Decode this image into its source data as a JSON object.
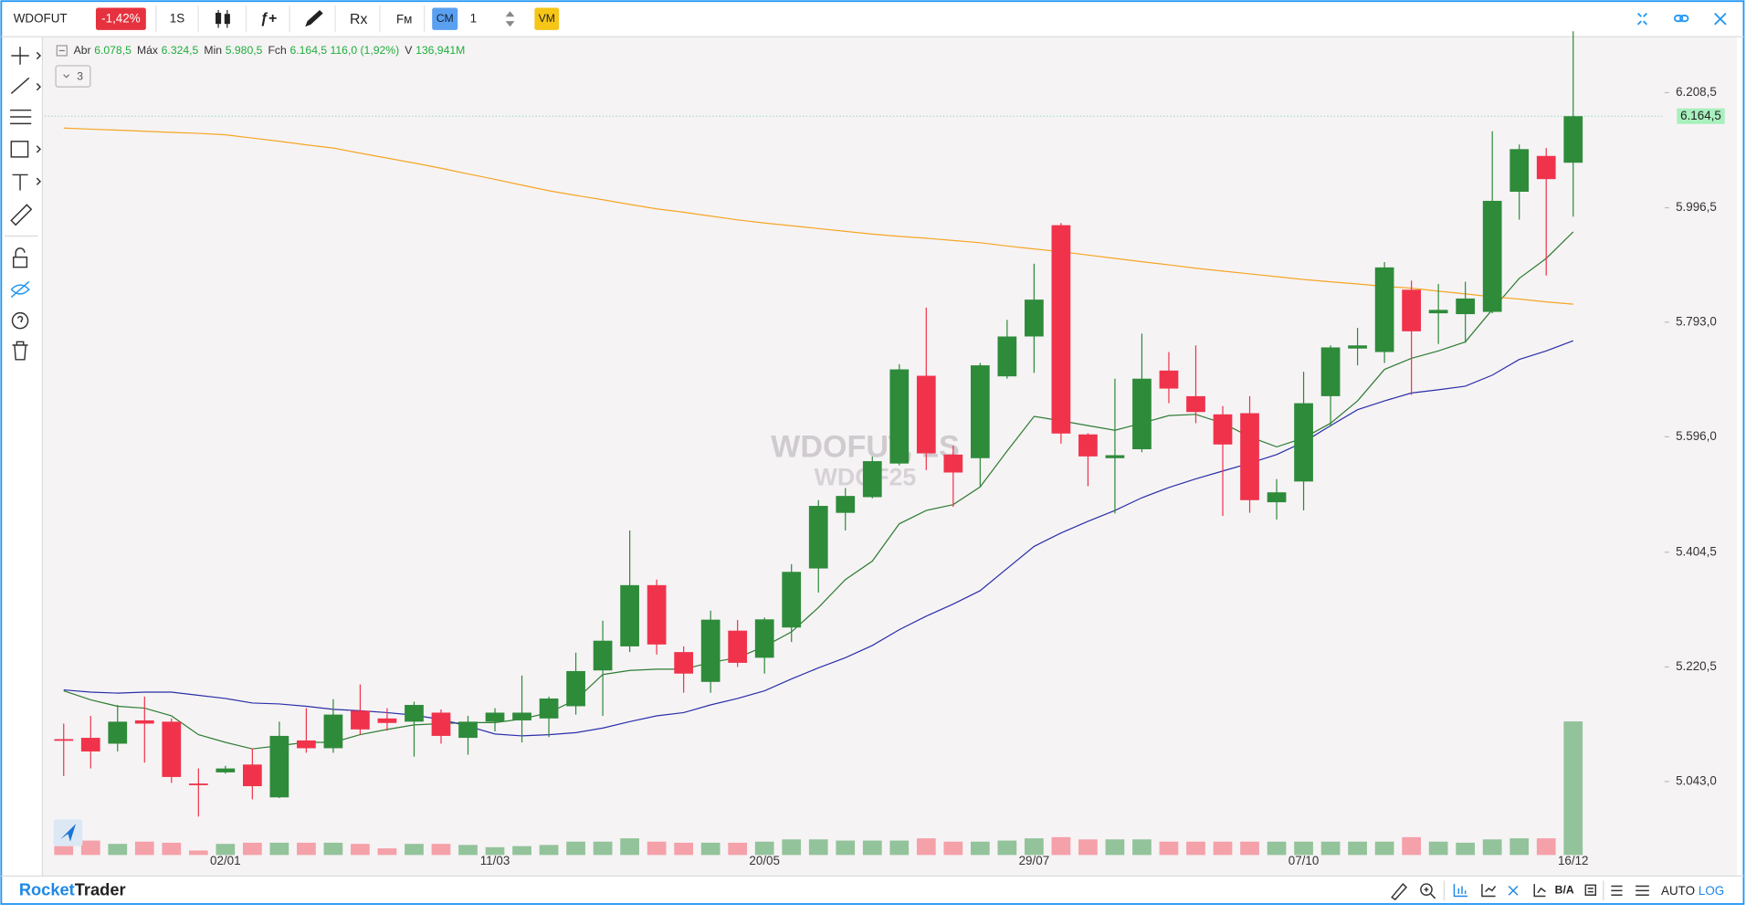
{
  "app": {
    "symbol": "WDOFUT",
    "change": "-1,42%",
    "period": "1S",
    "indicator": "ƒ+",
    "rx": "Rx",
    "fm": "Fм",
    "cm": "CM",
    "qty": "1",
    "vm": "VM",
    "collapse": "3",
    "brand_1": "Rocket",
    "brand_2": "Trader",
    "ba": "B/A",
    "auto": "AUTO",
    "log": "LOG",
    "watermark_1": "WDOFUT, 1S",
    "watermark_2": "WDOF25"
  },
  "chart_data": {
    "type": "candlestick",
    "log": true,
    "legend": [
      {
        "label": "Abr",
        "value": "6.078,5"
      },
      {
        "label": "Máx",
        "value": "6.324,5"
      },
      {
        "label": "Min",
        "value": "5.980,5"
      },
      {
        "label": "Fch",
        "value": "6.164,5 116,0 (1,92%)"
      },
      {
        "label": "V",
        "value": "136,941M"
      }
    ],
    "last_price_label": "6.164,5",
    "categories": [
      null,
      null,
      null,
      null,
      null,
      null,
      "02/01",
      null,
      null,
      null,
      null,
      null,
      null,
      null,
      null,
      null,
      "11/03",
      null,
      null,
      null,
      null,
      null,
      null,
      null,
      null,
      null,
      "20/05",
      null,
      null,
      null,
      null,
      null,
      null,
      null,
      null,
      null,
      "29/07",
      null,
      null,
      null,
      null,
      null,
      null,
      null,
      null,
      null,
      "07/10",
      null,
      null,
      null,
      null,
      null,
      null,
      null,
      null,
      null,
      "16/12"
    ],
    "open": [
      5108,
      5110,
      5101,
      5137,
      5135,
      5040,
      5057,
      5069,
      5019,
      5106,
      5094,
      5152,
      5140,
      5135,
      5149,
      5110,
      5135,
      5137,
      5140,
      5159,
      5215,
      5253,
      5351,
      5244,
      5197,
      5278,
      5235,
      5283,
      5378,
      5469,
      5495,
      5551,
      5700,
      5566,
      5560,
      5699,
      5768,
      5965,
      5600,
      5560,
      5575,
      5709,
      5665,
      5634,
      5636,
      5486.5,
      5521,
      5665,
      5747,
      5741,
      5850,
      5808.5,
      5807,
      5811,
      6025.5,
      6091,
      6078.5
    ],
    "high": [
      5132,
      5144,
      5161,
      5174,
      5140,
      5063,
      5067,
      5094,
      5135,
      5156,
      5170,
      5193,
      5156,
      5166,
      5154,
      5144,
      5156,
      5207,
      5174,
      5243,
      5294,
      5440,
      5360,
      5253,
      5310,
      5295,
      5299,
      5385,
      5490,
      5510,
      5563,
      5720,
      5818.5,
      5581,
      5722,
      5797,
      5896,
      5969,
      5602,
      5695,
      5773,
      5741,
      5752.5,
      5648,
      5665,
      5525,
      5707,
      5752.5,
      5783,
      5899,
      5866,
      5860,
      5864,
      6136.5,
      6112,
      6105.5,
      6324.5
    ],
    "low": [
      5051.5,
      5063,
      5089,
      5072,
      5041,
      4990,
      5055,
      5016,
      5018,
      5087,
      5087,
      5115,
      5121,
      5081,
      5101,
      5084,
      5120,
      5103,
      5111,
      5146,
      5144,
      5244,
      5240,
      5180,
      5180,
      5220.5,
      5210,
      5260,
      5339,
      5440,
      5493,
      5548,
      5540,
      5479,
      5512,
      5695,
      5705,
      5584.5,
      5513,
      5468,
      5570,
      5653,
      5619,
      5464,
      5469,
      5458,
      5473,
      5613,
      5718,
      5722,
      5667,
      5755,
      5757,
      5808.5,
      5975,
      5875,
      5980.5
    ],
    "close": [
      5107.5,
      5089,
      5135,
      5132,
      5050,
      5038,
      5063,
      5036,
      5113,
      5094,
      5146,
      5123,
      5133,
      5161,
      5113,
      5135,
      5149,
      5149,
      5171,
      5214,
      5262,
      5351,
      5256,
      5210,
      5295.5,
      5227,
      5296,
      5372.5,
      5480.5,
      5497,
      5555,
      5711,
      5568,
      5536,
      5718,
      5768,
      5832.5,
      5601.5,
      5563,
      5565,
      5695,
      5678,
      5638,
      5583,
      5490,
      5503,
      5653,
      5749,
      5752.5,
      5889.5,
      5777,
      5814.5,
      5834.5,
      6009,
      6103.5,
      6048.5,
      6164.5
    ],
    "volume": [
      9.1,
      14.8,
      11.4,
      13.7,
      12.6,
      4.6,
      11.4,
      12.6,
      12.6,
      12.6,
      12.6,
      11.4,
      6.8,
      11.4,
      11.4,
      10.3,
      8.0,
      9.1,
      10.3,
      13.7,
      13.7,
      17.1,
      13.7,
      12.6,
      12.6,
      12.6,
      13.7,
      16.0,
      16.0,
      14.8,
      14.8,
      14.8,
      17.1,
      13.7,
      13.7,
      14.8,
      17.1,
      18.3,
      16.0,
      16.0,
      16.0,
      13.7,
      13.7,
      13.7,
      13.7,
      13.7,
      13.7,
      13.7,
      13.7,
      13.7,
      18.3,
      13.7,
      12.6,
      16.0,
      17.1,
      17.1,
      136.941
    ],
    "up_color": "#2e8b3a",
    "down_color": "#f0334b",
    "up_volume_color": "#93c39a",
    "down_volume_color": "#f4a1aa",
    "series": [
      {
        "color": "#2e7d32",
        "values": [
          5183,
          5169,
          5159,
          5156,
          5144,
          5115,
          5103,
          5093,
          5098,
          5103,
          5103,
          5115,
          5123,
          5130,
          5132,
          5133.5,
          5133.5,
          5139,
          5149,
          5169,
          5208.5,
          5215,
          5217,
          5217,
          5227.5,
          5235,
          5253,
          5276,
          5315,
          5360,
          5390,
          5451,
          5473,
          5482.5,
          5512,
          5572,
          5630.5,
          5623,
          5615,
          5607,
          5619,
          5632,
          5634,
          5619,
          5596,
          5579,
          5594,
          5619,
          5657,
          5711,
          5730,
          5743,
          5758.5,
          5815,
          5870,
          5905.5,
          5953
        ]
      },
      {
        "color": "#2a2fa8",
        "values": [
          5184.5,
          5181,
          5179.5,
          5181,
          5181,
          5176,
          5171,
          5164,
          5162.5,
          5159,
          5154,
          5152,
          5149,
          5145,
          5138.5,
          5128,
          5116,
          5113,
          5115,
          5118,
          5125,
          5135,
          5144,
          5149,
          5161,
          5171,
          5183,
          5201.5,
          5219,
          5235,
          5254.5,
          5279.5,
          5301,
          5320.5,
          5342,
          5378,
          5414,
          5436,
          5455,
          5473,
          5494,
          5511,
          5525.5,
          5538.5,
          5551.5,
          5566,
          5587,
          5615,
          5642,
          5657,
          5670.5,
          5676,
          5682,
          5701,
          5728,
          5743,
          5760.5
        ]
      },
      {
        "color": "#f5a623",
        "values": [
          6142.5,
          6140.5,
          6138.5,
          6136.5,
          6134.5,
          6132.5,
          6130,
          6124,
          6118,
          6111.5,
          6105.5,
          6096,
          6087,
          6078,
          6068.5,
          6058,
          6048,
          6037.5,
          6027.5,
          6019,
          6011,
          6002.5,
          5994.5,
          5988.5,
          5981.5,
          5974.5,
          5969,
          5964,
          5959,
          5954,
          5949,
          5945,
          5941.5,
          5937.5,
          5933.5,
          5927.5,
          5922.5,
          5917.5,
          5911.5,
          5905.5,
          5899.5,
          5894,
          5888,
          5883,
          5878,
          5873,
          5868,
          5864,
          5860,
          5856,
          5852.5,
          5847.5,
          5842.5,
          5837.5,
          5833.5,
          5828.5,
          5824.5
        ]
      }
    ],
    "ylim": [
      4930,
      6330
    ],
    "yticks": [
      {
        "value": 6208.5,
        "label": "6.208,5"
      },
      {
        "value": 5996.5,
        "label": "5.996,5"
      },
      {
        "value": 5793,
        "label": "5.793,0"
      },
      {
        "value": 5596,
        "label": "5.596,0"
      },
      {
        "value": 5404.5,
        "label": "5.404,5"
      },
      {
        "value": 5220.5,
        "label": "5.220,5"
      },
      {
        "value": 5043,
        "label": "5.043,0"
      }
    ]
  }
}
